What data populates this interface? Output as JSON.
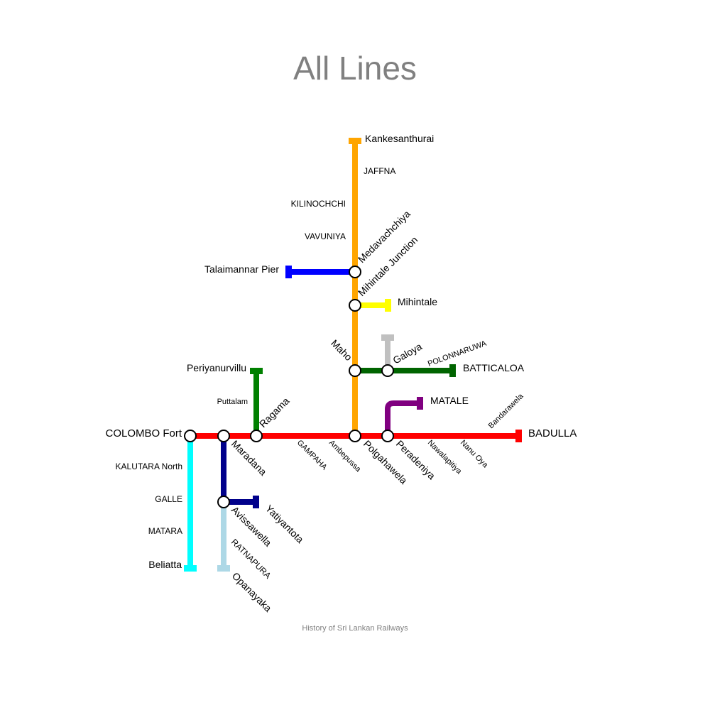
{
  "title": "All Lines",
  "footer": "History of Sri Lankan Railways",
  "colors": {
    "main": "#ff0000",
    "northern": "#ffa500",
    "mannar": "#0000ff",
    "matale": "#800080",
    "batticaloa": "#006400",
    "trinco": "#c0c0c0",
    "mihintale": "#ffff00",
    "puttalam": "#008000",
    "coastal": "#00ffff",
    "kelani_valley": "#00008b",
    "opanayaka": "#add8e6"
  },
  "stations": {
    "colombo_fort": "COLOMBO Fort",
    "maradana": "Maradana",
    "ragama": "Ragama",
    "polgahawela": "Polgahawela",
    "peradeniya": "Peradeniya",
    "badulla": "BADULLA",
    "kankesanthurai": "Kankesanthurai",
    "medavachchiya": "Medavachchiya",
    "mihintale_junction": "Mihintale Junction",
    "maho": "Maho",
    "galoya": "Galoya",
    "talaimannar": "Talaimannar Pier",
    "mihintale": "Mihintale",
    "batticaloa": "BATTICALOA",
    "matale": "MATALE",
    "periyanurvillu": "Periyanurvillu",
    "beliatta": "Beliatta",
    "avissawella": "Avissawella",
    "yatiyantota": "Yatiyantota",
    "opanayaka": "Opanayaka"
  },
  "places": {
    "jaffna": "JAFFNA",
    "kilinochchi": "KILINOCHCHI",
    "vavuniya": "VAVUNIYA",
    "polonnaruwa": "POLONNARUWA",
    "puttalam": "Puttalam",
    "kalutara": "KALUTARA North",
    "galle": "GALLE",
    "matara": "MATARA",
    "gampaha": "GAMPAHA",
    "ambepussa": "Ambepussa",
    "nawalapitiya": "Nawalapitiya",
    "nanu_oya": "Nanu Oya",
    "bandarawela": "Bandarawela",
    "ratnapura": "RATNAPURA"
  }
}
